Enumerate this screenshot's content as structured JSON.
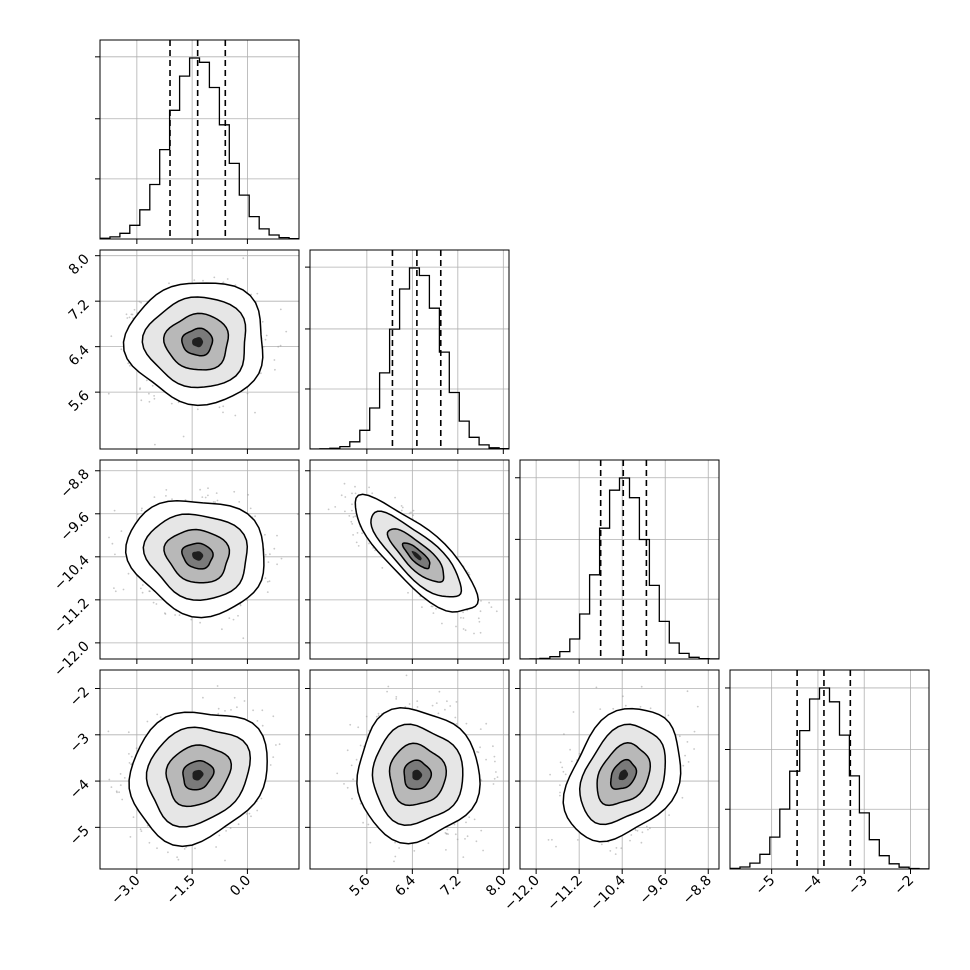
{
  "chart_data": {
    "type": "corner",
    "params": [
      {
        "ticks": [
          -3.0,
          -1.5,
          0.0
        ],
        "tick_labels": [
          "−3.0",
          "−1.5",
          "0.0"
        ],
        "range": [
          -4.0,
          1.4
        ],
        "quantiles": [
          -2.1,
          -1.35,
          -0.6
        ],
        "mean": -1.35,
        "sd": 0.75
      },
      {
        "ticks": [
          5.6,
          6.4,
          7.2,
          8.0
        ],
        "tick_labels": [
          "5.6",
          "6.4",
          "7.2",
          "8.0"
        ],
        "range": [
          4.6,
          8.1
        ],
        "quantiles": [
          6.05,
          6.48,
          6.9
        ],
        "mean": 6.48,
        "sd": 0.43
      },
      {
        "ticks": [
          -12.0,
          -11.2,
          -10.4,
          -9.6,
          -8.8
        ],
        "tick_labels": [
          "−12.0",
          "−11.2",
          "−10.4",
          "−9.6",
          "−8.8"
        ],
        "range": [
          -12.3,
          -8.6
        ],
        "quantiles": [
          -10.8,
          -10.38,
          -9.95
        ],
        "mean": -10.38,
        "sd": 0.43
      },
      {
        "ticks": [
          -5,
          -4,
          -3,
          -2
        ],
        "tick_labels": [
          "−5",
          "−4",
          "−3",
          "−2"
        ],
        "range": [
          -5.9,
          -1.6
        ],
        "quantiles": [
          -4.45,
          -3.87,
          -3.3
        ],
        "mean": -3.87,
        "sd": 0.57
      }
    ],
    "correlations": [
      [
        1,
        0,
        -0.1,
        0.15
      ],
      [
        0,
        1,
        -0.8,
        0
      ],
      [
        -0.1,
        -0.8,
        1,
        0.3
      ],
      [
        0.15,
        0,
        0.3,
        1
      ]
    ],
    "histogram": {
      "bins": 20,
      "style": "step",
      "quantile_lines": "dashed"
    },
    "density": {
      "contour_levels": 4,
      "scatter_points": "light gray"
    },
    "grid": true,
    "colors": {
      "line": "#000000",
      "grid": "#b0b0b0",
      "points": "#9a9a9a",
      "frame": "#000000"
    }
  }
}
